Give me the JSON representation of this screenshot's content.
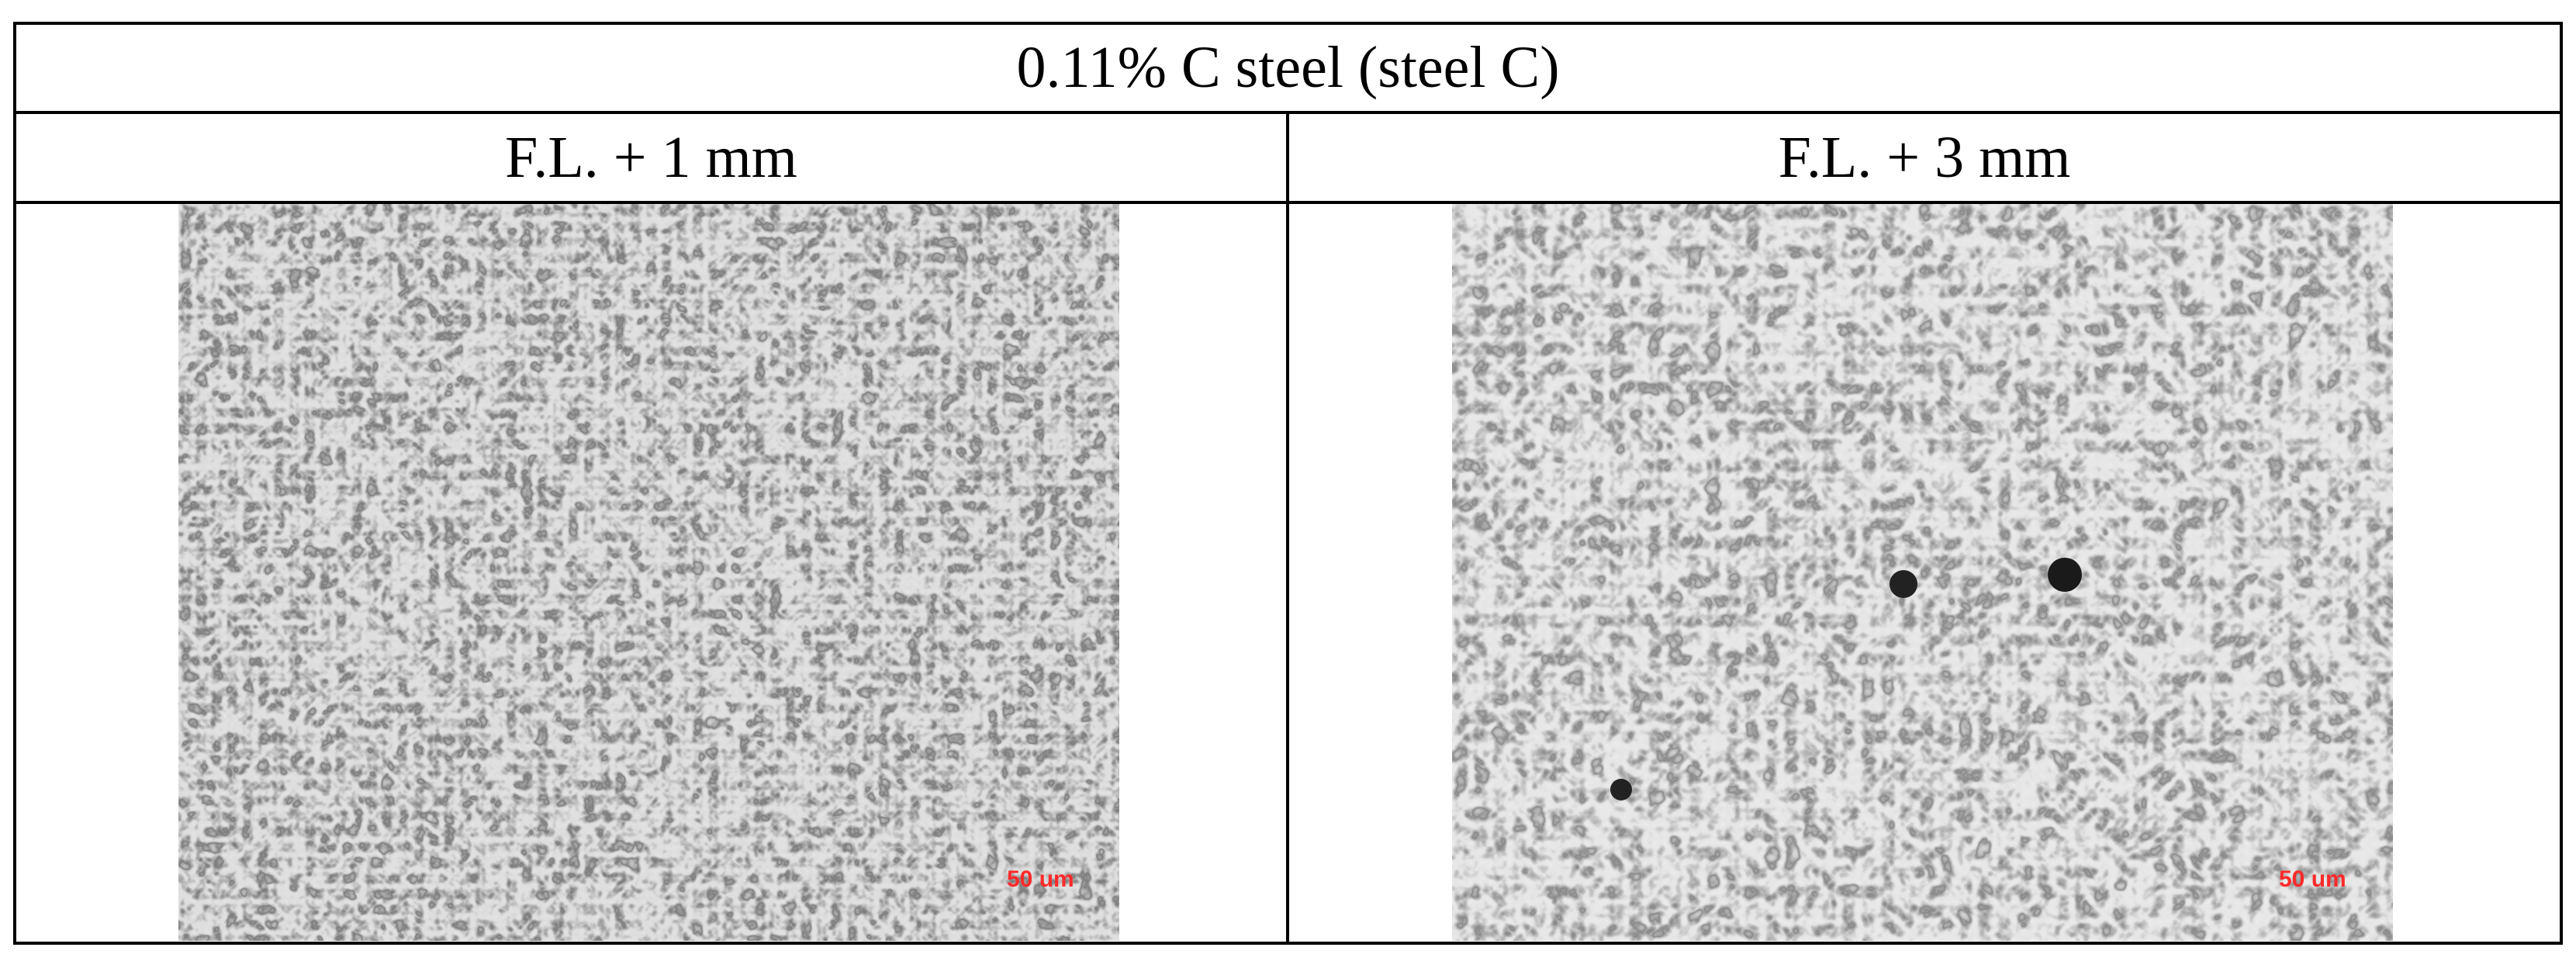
{
  "table": {
    "title": "0.11% C steel (steel C)",
    "columns": [
      {
        "header": "F.L. + 1 mm",
        "scale_bar": "50 um"
      },
      {
        "header": "F.L. + 3 mm",
        "scale_bar": "50 um"
      }
    ]
  }
}
